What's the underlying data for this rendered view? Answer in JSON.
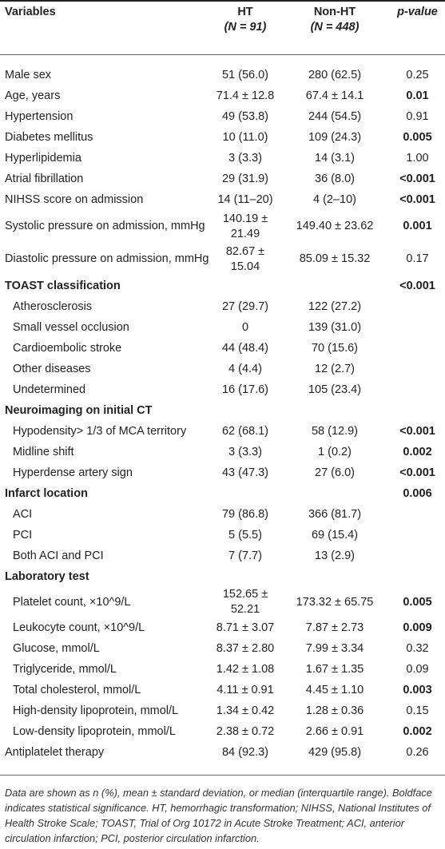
{
  "table": {
    "headers": {
      "variables": "Variables",
      "ht": "HT",
      "ht_n": "(N = 91)",
      "non_ht": "Non-HT",
      "non_ht_n": "(N = 448)",
      "p_value": "p-value"
    },
    "rows": [
      {
        "label": "Male sex",
        "ht": "51 (56.0)",
        "non_ht": "280 (62.5)",
        "p": "0.25",
        "bold_p": false
      },
      {
        "label": "Age, years",
        "ht": "71.4 ± 12.8",
        "non_ht": "67.4 ± 14.1",
        "p": "0.01",
        "bold_p": true
      },
      {
        "label": "Hypertension",
        "ht": "49 (53.8)",
        "non_ht": "244 (54.5)",
        "p": "0.91",
        "bold_p": false
      },
      {
        "label": "Diabetes mellitus",
        "ht": "10 (11.0)",
        "non_ht": "109 (24.3)",
        "p": "0.005",
        "bold_p": true
      },
      {
        "label": "Hyperlipidemia",
        "ht": "3 (3.3)",
        "non_ht": "14 (3.1)",
        "p": "1.00",
        "bold_p": false
      },
      {
        "label": "Atrial fibrillation",
        "ht": "29 (31.9)",
        "non_ht": "36 (8.0)",
        "p": "<0.001",
        "bold_p": true
      },
      {
        "label": "NIHSS score on admission",
        "ht": "14 (11–20)",
        "non_ht": "4 (2–10)",
        "p": "<0.001",
        "bold_p": true
      },
      {
        "label": "Systolic pressure on admission, mmHg",
        "ht": "140.19 ± 21.49",
        "non_ht": "149.40 ± 23.62",
        "p": "0.001",
        "bold_p": true
      },
      {
        "label": "Diastolic pressure on admission, mmHg",
        "ht": "82.67 ± 15.04",
        "non_ht": "85.09 ± 15.32",
        "p": "0.17",
        "bold_p": false
      }
    ],
    "toast": {
      "title": "TOAST classification",
      "p": "<0.001",
      "rows": [
        {
          "label": "Atherosclerosis",
          "ht": "27 (29.7)",
          "non_ht": "122 (27.2)"
        },
        {
          "label": "Small vessel occlusion",
          "ht": "0",
          "non_ht": "139 (31.0)"
        },
        {
          "label": "Cardioembolic stroke",
          "ht": "44 (48.4)",
          "non_ht": "70 (15.6)"
        },
        {
          "label": "Other diseases",
          "ht": "4 (4.4)",
          "non_ht": "12 (2.7)"
        },
        {
          "label": "Undetermined",
          "ht": "16 (17.6)",
          "non_ht": "105 (23.4)"
        }
      ]
    },
    "neuro": {
      "title": "Neuroimaging on initial CT",
      "rows": [
        {
          "label": "Hypodensity> 1/3 of MCA territory",
          "ht": "62 (68.1)",
          "non_ht": "58 (12.9)",
          "p": "<0.001"
        },
        {
          "label": "Midline shift",
          "ht": "3 (3.3)",
          "non_ht": "1 (0.2)",
          "p": "0.002"
        },
        {
          "label": "Hyperdense artery sign",
          "ht": "43 (47.3)",
          "non_ht": "27 (6.0)",
          "p": "<0.001"
        }
      ]
    },
    "infarct": {
      "title": "Infarct location",
      "p": "0.006",
      "rows": [
        {
          "label": "ACI",
          "ht": "79 (86.8)",
          "non_ht": "366 (81.7)"
        },
        {
          "label": "PCI",
          "ht": "5 (5.5)",
          "non_ht": "69 (15.4)"
        },
        {
          "label": "Both ACI and PCI",
          "ht": "7 (7.7)",
          "non_ht": "13 (2.9)"
        }
      ]
    },
    "lab": {
      "title": "Laboratory test",
      "rows": [
        {
          "label": "Platelet count, ×10^9/L",
          "ht": "152.65 ± 52.21",
          "non_ht": "173.32 ± 65.75",
          "p": "0.005",
          "bold_p": true
        },
        {
          "label": "Leukocyte count, ×10^9/L",
          "ht": "8.71 ± 3.07",
          "non_ht": "7.87 ± 2.73",
          "p": "0.009",
          "bold_p": true
        },
        {
          "label": "Glucose, mmol/L",
          "ht": "8.37 ± 2.80",
          "non_ht": "7.99 ± 3.34",
          "p": "0.32",
          "bold_p": false
        },
        {
          "label": "Triglyceride, mmol/L",
          "ht": "1.42 ± 1.08",
          "non_ht": "1.67 ± 1.35",
          "p": "0.09",
          "bold_p": false
        },
        {
          "label": "Total cholesterol, mmol/L",
          "ht": "4.11 ± 0.91",
          "non_ht": "4.45 ± 1.10",
          "p": "0.003",
          "bold_p": true
        },
        {
          "label": "High-density lipoprotein, mmol/L",
          "ht": "1.34 ± 0.42",
          "non_ht": "1.28 ± 0.36",
          "p": "0.15",
          "bold_p": false
        },
        {
          "label": "Low-density lipoprotein, mmol/L",
          "ht": "2.38 ± 0.72",
          "non_ht": "2.66 ± 0.91",
          "p": "0.002",
          "bold_p": true
        }
      ]
    },
    "antiplatelet": {
      "label": "Antiplatelet therapy",
      "ht": "84 (92.3)",
      "non_ht": "429 (95.8)",
      "p": "0.26"
    }
  },
  "footnote": "Data are shown as n (%), mean ± standard deviation, or median (interquartile range). Boldface indicates statistical significance. HT, hemorrhagic transformation; NIHSS, National Institutes of Health Stroke Scale; TOAST, Trial of Org 10172 in Acute Stroke Treatment; ACI, anterior circulation infarction; PCI, posterior circulation infarction."
}
